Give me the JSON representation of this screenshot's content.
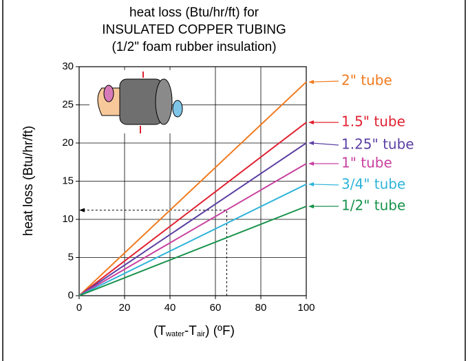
{
  "chart_data": {
    "type": "line",
    "title": [
      "heat loss (Btu/hr/ft) for",
      "INSULATED COPPER TUBING",
      "(1/2\" foam rubber insulation)"
    ],
    "y_label": "heat loss (Btu/hr/ft)",
    "x_label": [
      "(T",
      "water",
      "-T",
      "air",
      ") (ºF)"
    ],
    "x": [
      0,
      100
    ],
    "series": [
      {
        "name": "2\" tube",
        "color": "#f07a1e",
        "values": [
          0,
          28
        ]
      },
      {
        "name": "1.5\" tube",
        "color": "#e02030",
        "values": [
          0,
          22.7
        ]
      },
      {
        "name": "1.25\" tube",
        "color": "#5b3fa3",
        "values": [
          0,
          20
        ]
      },
      {
        "name": "1\" tube",
        "color": "#c8409e",
        "values": [
          0,
          17.3
        ]
      },
      {
        "name": "3/4\" tube",
        "color": "#2fb4d9",
        "values": [
          0,
          14.6
        ]
      },
      {
        "name": "1/2\" tube",
        "color": "#16924a",
        "values": [
          0,
          11.7
        ]
      }
    ],
    "annotation": {
      "x": 65,
      "y": 11.2
    },
    "xlim": [
      0,
      100
    ],
    "xticks": [
      0,
      20,
      40,
      60,
      80,
      100
    ],
    "ylim": [
      0,
      30
    ],
    "yticks": [
      0,
      5,
      10,
      15,
      20,
      25,
      30
    ],
    "grid": true
  }
}
